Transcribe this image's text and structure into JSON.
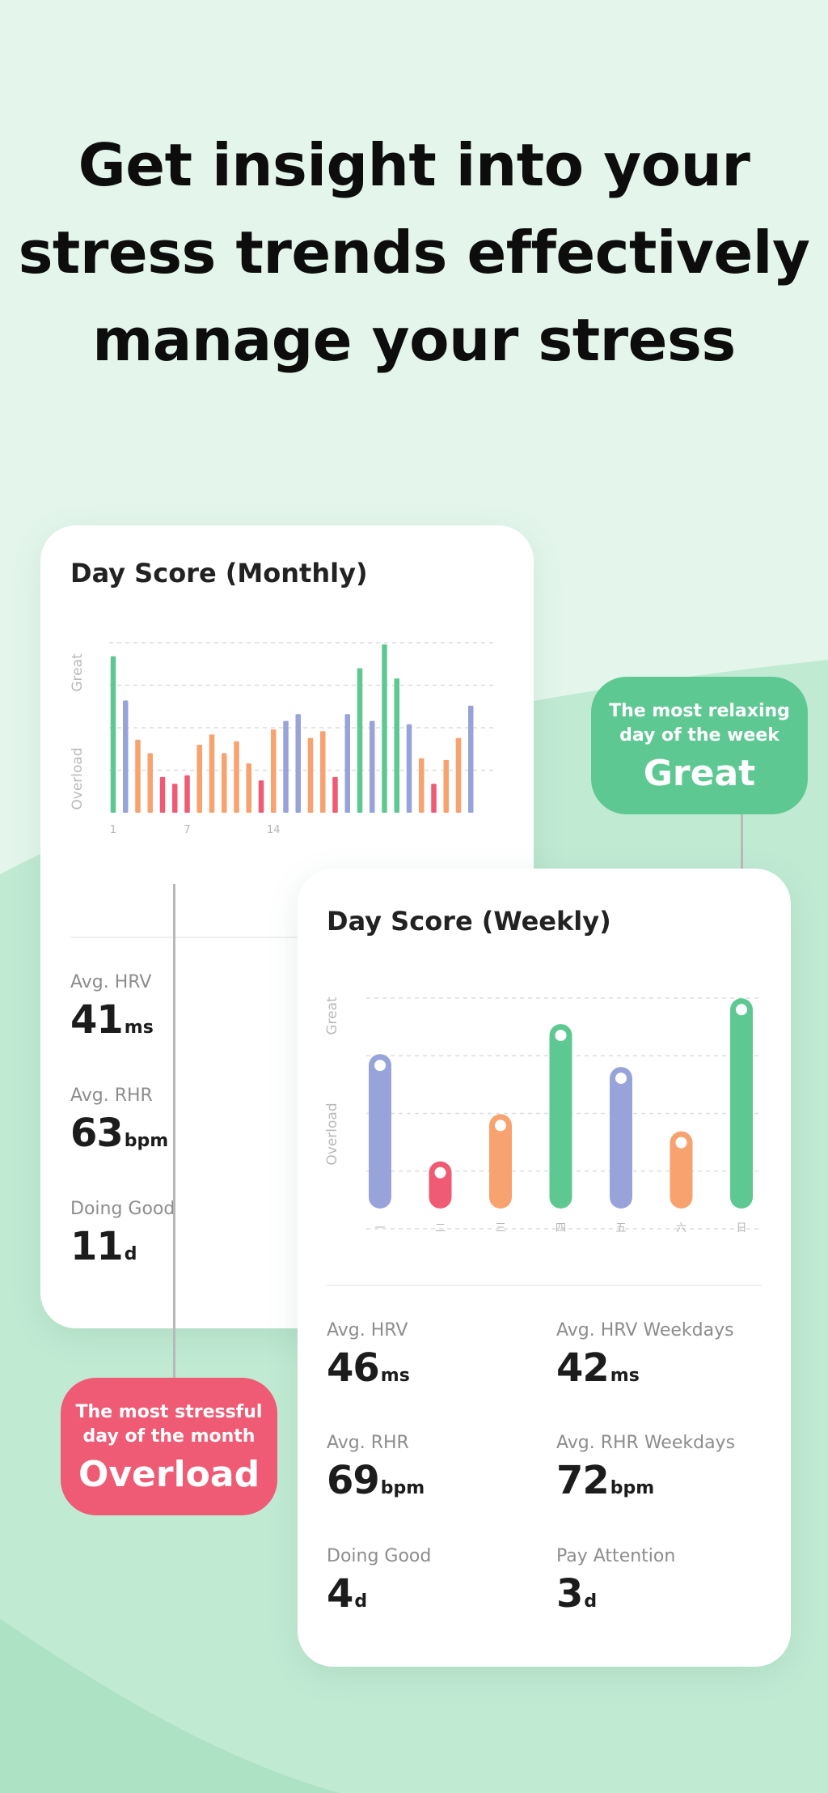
{
  "headline": {
    "line1": "Get insight into your",
    "line2": "stress trends effectively",
    "line3": "manage your stress"
  },
  "colors": {
    "great": "#5ec893",
    "good": "#97a3d9",
    "attention": "#f7a26f",
    "overload": "#ef5a74"
  },
  "monthly_card": {
    "title": "Day Score (Monthly)",
    "axis_top": "Great",
    "axis_bottom": "Overload",
    "stats": [
      {
        "label": "Avg. HRV",
        "value": "41",
        "unit": "ms"
      },
      {
        "label": "Avg. RHR",
        "value": "63",
        "unit": "bpm"
      },
      {
        "label": "Doing Good",
        "value": "11",
        "unit": "d"
      }
    ]
  },
  "weekly_card": {
    "title": "Day Score (Weekly)",
    "axis_top": "Great",
    "axis_bottom": "Overload",
    "stats": [
      {
        "label": "Avg. HRV",
        "value": "46",
        "unit": "ms"
      },
      {
        "label": "Avg. HRV Weekdays",
        "value": "42",
        "unit": "ms"
      },
      {
        "label": "Avg. RHR",
        "value": "69",
        "unit": "bpm"
      },
      {
        "label": "Avg. RHR Weekdays",
        "value": "72",
        "unit": "bpm"
      },
      {
        "label": "Doing Good",
        "value": "4",
        "unit": "d"
      },
      {
        "label": "Pay Attention",
        "value": "3",
        "unit": "d"
      }
    ]
  },
  "callouts": {
    "relaxing": {
      "line1": "The most relaxing",
      "line2": "day of the week",
      "value": "Great"
    },
    "stressful": {
      "line1": "The most stressful",
      "line2": "day of the month",
      "value": "Overload"
    }
  },
  "chart_data": [
    {
      "type": "bar",
      "title": "Day Score (Monthly)",
      "xlabel": "",
      "ylabel": "",
      "ylim": [
        0,
        100
      ],
      "y_axis_labels": {
        "top": "Great",
        "bottom": "Overload"
      },
      "x_ticks": [
        "1",
        "7",
        "14"
      ],
      "grid": true,
      "bars": [
        {
          "x": 1,
          "value": 92,
          "level": "great"
        },
        {
          "x": 2,
          "value": 66,
          "level": "good"
        },
        {
          "x": 3,
          "value": 43,
          "level": "attention"
        },
        {
          "x": 4,
          "value": 35,
          "level": "attention"
        },
        {
          "x": 5,
          "value": 21,
          "level": "overload"
        },
        {
          "x": 6,
          "value": 17,
          "level": "overload"
        },
        {
          "x": 7,
          "value": 22,
          "level": "overload"
        },
        {
          "x": 8,
          "value": 40,
          "level": "attention"
        },
        {
          "x": 9,
          "value": 46,
          "level": "attention"
        },
        {
          "x": 10,
          "value": 35,
          "level": "attention"
        },
        {
          "x": 11,
          "value": 42,
          "level": "attention"
        },
        {
          "x": 12,
          "value": 29,
          "level": "attention"
        },
        {
          "x": 13,
          "value": 19,
          "level": "overload"
        },
        {
          "x": 14,
          "value": 49,
          "level": "attention"
        },
        {
          "x": 15,
          "value": 54,
          "level": "good"
        },
        {
          "x": 16,
          "value": 58,
          "level": "good"
        },
        {
          "x": 17,
          "value": 44,
          "level": "attention"
        },
        {
          "x": 18,
          "value": 48,
          "level": "attention"
        },
        {
          "x": 19,
          "value": 21,
          "level": "overload"
        },
        {
          "x": 20,
          "value": 58,
          "level": "good"
        },
        {
          "x": 21,
          "value": 85,
          "level": "great"
        },
        {
          "x": 22,
          "value": 54,
          "level": "good"
        },
        {
          "x": 23,
          "value": 99,
          "level": "great"
        },
        {
          "x": 24,
          "value": 79,
          "level": "great"
        },
        {
          "x": 25,
          "value": 52,
          "level": "good"
        },
        {
          "x": 26,
          "value": 32,
          "level": "attention"
        },
        {
          "x": 27,
          "value": 17,
          "level": "overload"
        },
        {
          "x": 28,
          "value": 31,
          "level": "attention"
        },
        {
          "x": 29,
          "value": 44,
          "level": "attention"
        },
        {
          "x": 30,
          "value": 63,
          "level": "good"
        }
      ]
    },
    {
      "type": "bar",
      "title": "Day Score (Weekly)",
      "xlabel": "",
      "ylabel": "",
      "ylim": [
        0,
        100
      ],
      "y_axis_labels": {
        "top": "Great",
        "bottom": "Overload"
      },
      "categories": [
        "一",
        "二",
        "三",
        "四",
        "五",
        "六",
        "日"
      ],
      "grid": true,
      "bars": [
        {
          "value": 72,
          "level": "good"
        },
        {
          "value": 22,
          "level": "overload"
        },
        {
          "value": 44,
          "level": "attention"
        },
        {
          "value": 86,
          "level": "great"
        },
        {
          "value": 66,
          "level": "good"
        },
        {
          "value": 36,
          "level": "attention"
        },
        {
          "value": 98,
          "level": "great"
        }
      ]
    }
  ]
}
